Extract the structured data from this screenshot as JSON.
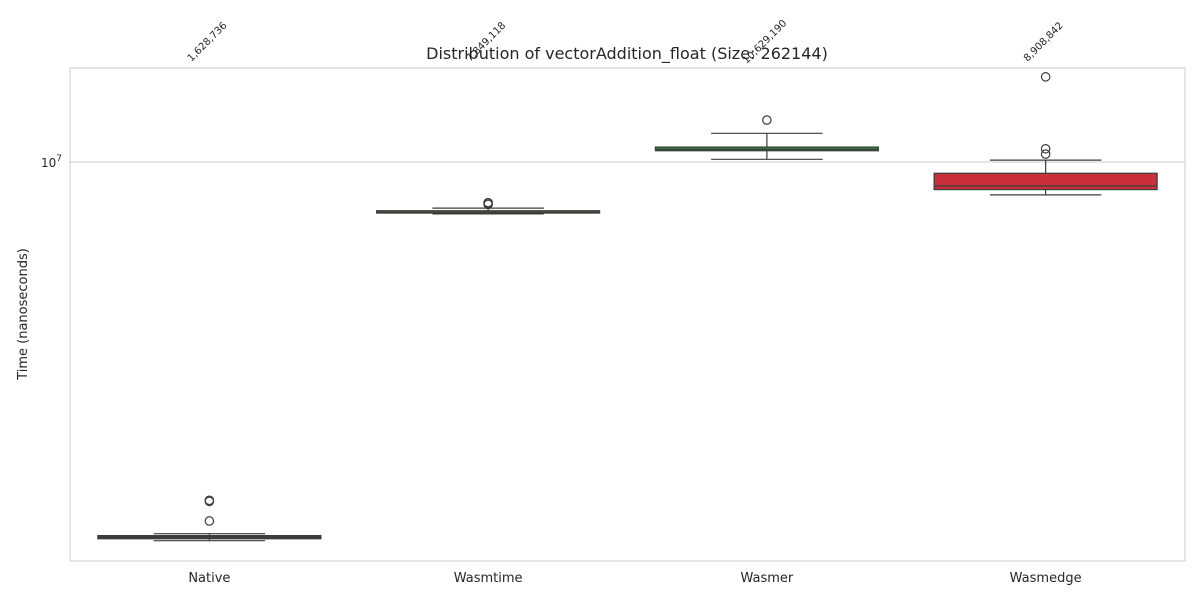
{
  "chart_data": {
    "type": "box",
    "title": "Distribution of vectorAddition_float (Size: 262144)",
    "xlabel": "",
    "ylabel": "Time (nanoseconds)",
    "yscale": "log",
    "ylim": [
      1500000,
      18000000
    ],
    "y_major_tick": {
      "value": 10000000,
      "base": "10",
      "exponent": "7"
    },
    "grid": true,
    "categories": [
      "Native",
      "Wasmtime",
      "Wasmer",
      "Wasmedge"
    ],
    "colors": [
      "#3b3b3b",
      "#c47c27",
      "#2e8a3b",
      "#c9303a"
    ],
    "median_labels": [
      "1,628,736",
      "7,849,118",
      "10,629,190",
      "8,908,842"
    ],
    "boxes": [
      {
        "category": "Native",
        "whisker_low": 1600000,
        "q1": 1615000,
        "median": 1628736,
        "q3": 1640000,
        "whisker_high": 1655000,
        "outliers": [
          1760000,
          1935000,
          1945000
        ]
      },
      {
        "category": "Wasmtime",
        "whisker_low": 7780000,
        "q1": 7810000,
        "median": 7849118,
        "q3": 7900000,
        "whisker_high": 8000000,
        "outliers": [
          8145000,
          8190000,
          8215000
        ]
      },
      {
        "category": "Wasmer",
        "whisker_low": 10130000,
        "q1": 10560000,
        "median": 10629190,
        "q3": 10750000,
        "whisker_high": 11490000,
        "outliers": [
          12250000
        ]
      },
      {
        "category": "Wasmedge",
        "whisker_low": 8530000,
        "q1": 8750000,
        "median": 8908842,
        "q3": 9470000,
        "whisker_high": 10090000,
        "outliers": [
          10390000,
          10660000,
          15100000
        ]
      }
    ]
  }
}
